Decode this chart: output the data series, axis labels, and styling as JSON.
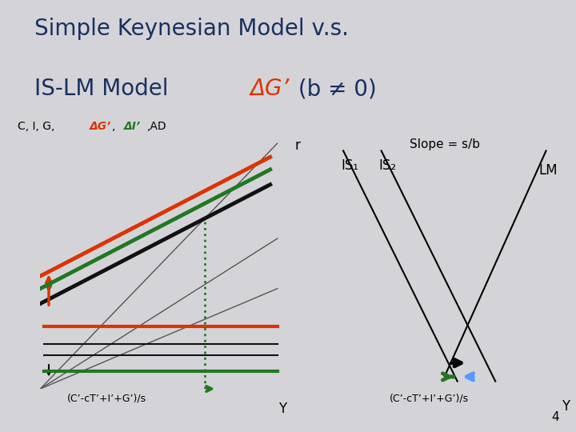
{
  "title_color": "#1a3060",
  "orange_color": "#dd3300",
  "green_color": "#227722",
  "black_color": "#111111",
  "blue_color": "#5599ff",
  "gray45_color": "#555555",
  "bg_color": "#d4d4d8",
  "separator_color": "#8899bb",
  "title_line1": "Simple Keynesian Model v.s.",
  "title_line2_dark": "IS-LM Model ",
  "title_delta_G": "ΔG’",
  "title_rest": " (b ≠ 0)",
  "left_xaxis_label": "(C’-cT’+I’+G’)/s",
  "right_ylabel": "r",
  "right_slope_label": "Slope = s/b",
  "is1_label": "IS₁",
  "is2_label": "IS₂",
  "lm_label": "LM",
  "right_xaxis_label": "(C’-cT’+I’+G’)/s",
  "page_number": "4"
}
